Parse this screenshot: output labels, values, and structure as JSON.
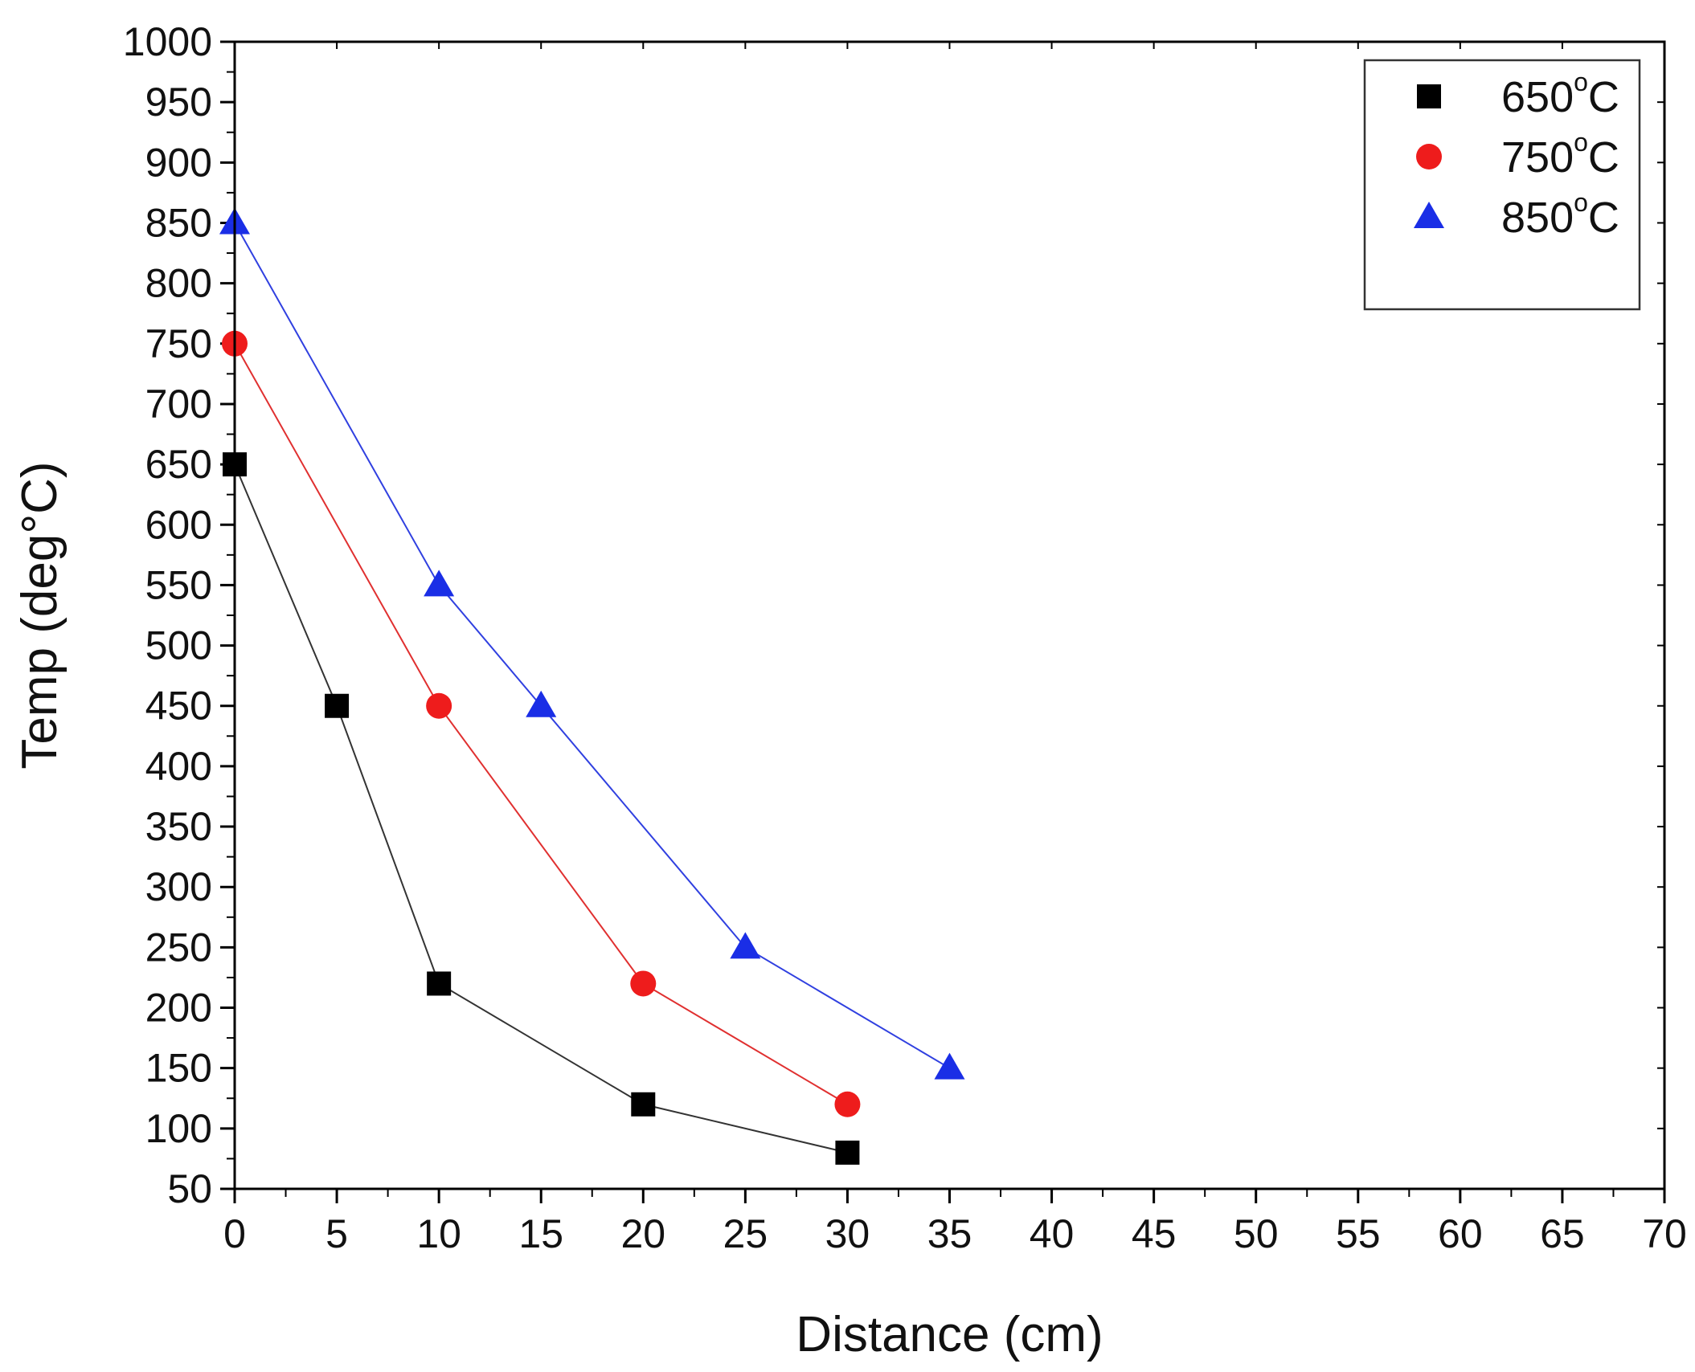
{
  "chart_data": {
    "type": "line",
    "title": "",
    "xlabel": "Distance (cm)",
    "ylabel": "Temp (deg°C)",
    "xlim": [
      0,
      70
    ],
    "ylim": [
      50,
      1000
    ],
    "xticks": [
      0,
      5,
      10,
      15,
      20,
      25,
      30,
      35,
      40,
      45,
      50,
      55,
      60,
      65,
      70
    ],
    "yticks": [
      50,
      100,
      150,
      200,
      250,
      300,
      350,
      400,
      450,
      500,
      550,
      600,
      650,
      700,
      750,
      800,
      850,
      900,
      950,
      1000
    ],
    "grid": false,
    "legend_position": "top-right",
    "series": [
      {
        "name": "650°C",
        "legend_label": "650",
        "legend_sup": "o",
        "legend_suffix": "C",
        "marker": "square",
        "color": "#000000",
        "line_color": "#333333",
        "x": [
          0,
          5,
          10,
          20,
          30
        ],
        "y": [
          650,
          450,
          220,
          120,
          80
        ]
      },
      {
        "name": "750°C",
        "legend_label": "750",
        "legend_sup": "o",
        "legend_suffix": "C",
        "marker": "circle",
        "color": "#ee1c1c",
        "line_color": "#e03030",
        "x": [
          0,
          10,
          20,
          30
        ],
        "y": [
          750,
          450,
          220,
          120
        ]
      },
      {
        "name": "850°C",
        "legend_label": "850",
        "legend_sup": "o",
        "legend_suffix": "C",
        "marker": "triangle",
        "color": "#1a2ee6",
        "line_color": "#3040e0",
        "x": [
          0,
          10,
          15,
          25,
          35
        ],
        "y": [
          850,
          550,
          450,
          250,
          150
        ]
      }
    ]
  }
}
